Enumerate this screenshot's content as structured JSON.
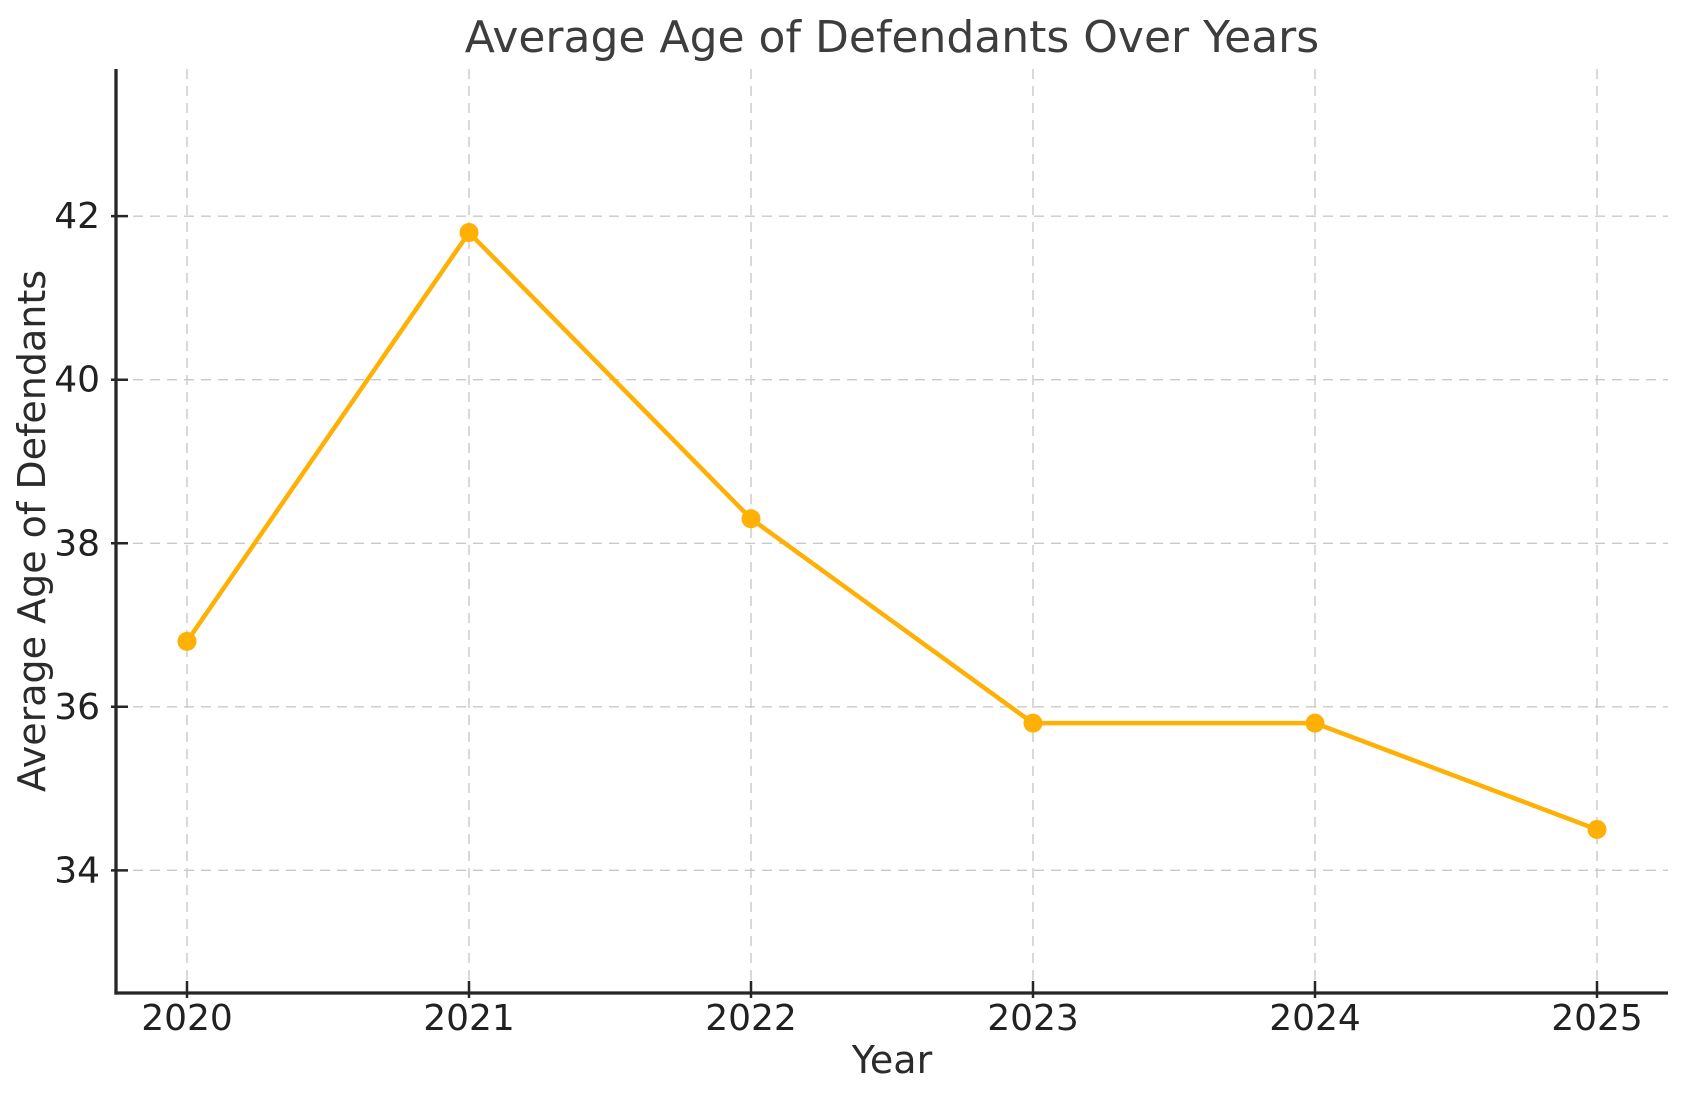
{
  "chart_data": {
    "type": "line",
    "title": "Average Age of Defendants Over Years",
    "xlabel": "Year",
    "ylabel": "Average Age of Defendants",
    "x": [
      2020,
      2021,
      2022,
      2023,
      2024,
      2025
    ],
    "series": [
      {
        "name": "Average Age of Defendants",
        "values": [
          36.8,
          41.8,
          38.3,
          35.8,
          35.8,
          34.5
        ],
        "color": "#FFB005",
        "marker": "circle"
      }
    ],
    "yticks": [
      34,
      36,
      38,
      40,
      42
    ],
    "ylim": [
      32.5,
      43.8
    ],
    "grid": true,
    "grid_style": "dashed",
    "legend": "none"
  },
  "style": {
    "background": "#FFFFFF",
    "line_color": "#FFB005",
    "marker_color": "#FFB005",
    "grid_color": "#C9C9C9",
    "spine_color": "#262626",
    "tick_color": "#212121",
    "title_color": "#3D3D3D",
    "label_color": "#2B2B2B"
  }
}
